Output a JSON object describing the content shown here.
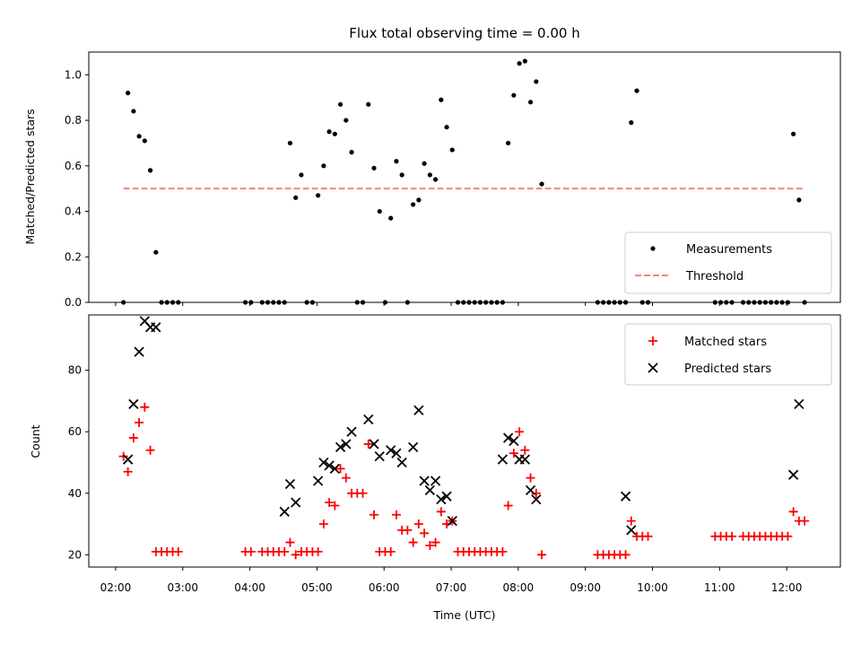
{
  "chart_data": [
    {
      "type": "scatter",
      "title": "Flux total observing time = 0.00 h",
      "ylabel": "Matched/Predicted stars",
      "xlim": [
        "01:36",
        "12:48"
      ],
      "ylim": [
        0,
        1.1
      ],
      "yticks": [
        0.0,
        0.2,
        0.4,
        0.6,
        0.8,
        1.0
      ],
      "ytick_labels": [
        "0.0",
        "0.2",
        "0.4",
        "0.6",
        "0.8",
        "1.0"
      ],
      "legend": {
        "placement": "lower-right",
        "entries": [
          "Measurements",
          "Threshold"
        ]
      },
      "threshold": {
        "name": "Threshold",
        "y": 0.5,
        "x_range": [
          "02:07",
          "12:14"
        ],
        "color": "#ff8080"
      },
      "series": [
        {
          "name": "Measurements",
          "color": "#000000",
          "x": [
            "02:07",
            "02:11",
            "02:16",
            "02:21",
            "02:26",
            "02:31",
            "02:36",
            "02:41",
            "02:46",
            "02:51",
            "02:56",
            "03:56",
            "04:01",
            "04:11",
            "04:16",
            "04:21",
            "04:26",
            "04:31",
            "04:36",
            "04:41",
            "04:46",
            "04:51",
            "04:56",
            "05:01",
            "05:06",
            "05:11",
            "05:16",
            "05:21",
            "05:26",
            "05:31",
            "05:36",
            "05:41",
            "05:46",
            "05:51",
            "05:56",
            "06:01",
            "06:06",
            "06:11",
            "06:16",
            "06:21",
            "06:26",
            "06:31",
            "06:36",
            "06:41",
            "06:46",
            "06:51",
            "06:56",
            "07:01",
            "07:06",
            "07:11",
            "07:16",
            "07:21",
            "07:26",
            "07:31",
            "07:36",
            "07:41",
            "07:46",
            "07:51",
            "07:56",
            "08:01",
            "08:06",
            "08:11",
            "08:16",
            "08:21",
            "09:11",
            "09:16",
            "09:21",
            "09:26",
            "09:31",
            "09:36",
            "09:41",
            "09:46",
            "09:51",
            "09:56",
            "10:56",
            "11:01",
            "11:06",
            "11:11",
            "11:21",
            "11:26",
            "11:31",
            "11:36",
            "11:41",
            "11:46",
            "11:51",
            "11:56",
            "12:01",
            "12:06",
            "12:11",
            "12:16"
          ],
          "y": [
            0,
            0.92,
            0.84,
            0.73,
            0.71,
            0.58,
            0.22,
            0,
            0,
            0,
            0,
            0,
            0,
            0,
            0,
            0,
            0,
            0,
            0.7,
            0.46,
            0.56,
            0,
            0,
            0.47,
            0.6,
            0.75,
            0.74,
            0.87,
            0.8,
            0.66,
            0,
            0,
            0.87,
            0.59,
            0.4,
            0,
            0.37,
            0.62,
            0.56,
            0,
            0.43,
            0.45,
            0.61,
            0.56,
            0.54,
            0.89,
            0.77,
            0.67,
            0,
            0,
            0,
            0,
            0,
            0,
            0,
            0,
            0,
            0.7,
            0.91,
            1.05,
            1.06,
            0.88,
            0.97,
            0.52,
            0,
            0,
            0,
            0,
            0,
            0,
            0.79,
            0.93,
            0,
            0,
            0,
            0,
            0,
            0,
            0,
            0,
            0,
            0,
            0,
            0,
            0,
            0,
            0,
            0.74,
            0.45,
            0
          ]
        }
      ]
    },
    {
      "type": "scatter",
      "xlabel": "Time (UTC)",
      "ylabel": "Count",
      "xlim": [
        "01:36",
        "12:48"
      ],
      "ylim": [
        16,
        98
      ],
      "yticks": [
        20,
        40,
        60,
        80
      ],
      "ytick_labels": [
        "20",
        "40",
        "60",
        "80"
      ],
      "xticks": [
        "02:00",
        "03:00",
        "04:00",
        "05:00",
        "06:00",
        "07:00",
        "08:00",
        "09:00",
        "10:00",
        "11:00",
        "12:00"
      ],
      "legend": {
        "placement": "upper-right",
        "entries": [
          "Matched stars",
          "Predicted stars"
        ]
      },
      "series": [
        {
          "name": "Matched stars",
          "marker": "plus",
          "color": "#ff0000",
          "x": [
            "02:07",
            "02:11",
            "02:16",
            "02:21",
            "02:26",
            "02:31",
            "02:36",
            "02:41",
            "02:46",
            "02:51",
            "02:56",
            "03:56",
            "04:01",
            "04:11",
            "04:16",
            "04:21",
            "04:26",
            "04:31",
            "04:36",
            "04:41",
            "04:46",
            "04:51",
            "04:56",
            "05:01",
            "05:06",
            "05:11",
            "05:16",
            "05:21",
            "05:26",
            "05:31",
            "05:36",
            "05:41",
            "05:46",
            "05:51",
            "05:56",
            "06:01",
            "06:06",
            "06:11",
            "06:16",
            "06:21",
            "06:26",
            "06:31",
            "06:36",
            "06:41",
            "06:46",
            "06:51",
            "06:56",
            "07:01",
            "07:06",
            "07:11",
            "07:16",
            "07:21",
            "07:26",
            "07:31",
            "07:36",
            "07:41",
            "07:46",
            "07:51",
            "07:56",
            "08:01",
            "08:06",
            "08:11",
            "08:16",
            "08:21",
            "09:11",
            "09:16",
            "09:21",
            "09:26",
            "09:31",
            "09:36",
            "09:41",
            "09:46",
            "09:51",
            "09:56",
            "10:56",
            "11:01",
            "11:06",
            "11:11",
            "11:21",
            "11:26",
            "11:31",
            "11:36",
            "11:41",
            "11:46",
            "11:51",
            "11:56",
            "12:01",
            "12:06",
            "12:11",
            "12:16"
          ],
          "y": [
            52,
            47,
            58,
            63,
            68,
            54,
            21,
            21,
            21,
            21,
            21,
            21,
            21,
            21,
            21,
            21,
            21,
            21,
            24,
            20,
            21,
            21,
            21,
            21,
            30,
            37,
            36,
            48,
            45,
            40,
            40,
            40,
            56,
            33,
            21,
            21,
            21,
            33,
            28,
            28,
            24,
            30,
            27,
            23,
            24,
            34,
            30,
            31,
            21,
            21,
            21,
            21,
            21,
            21,
            21,
            21,
            21,
            36,
            53,
            60,
            54,
            45,
            40,
            20,
            20,
            20,
            20,
            20,
            20,
            20,
            31,
            26,
            26,
            26,
            26,
            26,
            26,
            26,
            26,
            26,
            26,
            26,
            26,
            26,
            26,
            26,
            26,
            34,
            31,
            31
          ]
        },
        {
          "name": "Predicted stars",
          "marker": "x",
          "color": "#000000",
          "x": [
            "02:11",
            "02:16",
            "02:21",
            "02:26",
            "02:31",
            "02:36",
            "04:31",
            "04:36",
            "04:41",
            "05:01",
            "05:06",
            "05:11",
            "05:16",
            "05:21",
            "05:26",
            "05:31",
            "05:46",
            "05:51",
            "05:56",
            "06:06",
            "06:11",
            "06:16",
            "06:26",
            "06:31",
            "06:36",
            "06:41",
            "06:46",
            "06:51",
            "06:56",
            "07:01",
            "07:46",
            "07:51",
            "07:56",
            "08:01",
            "08:06",
            "08:11",
            "08:16",
            "09:36",
            "09:41",
            "12:06",
            "12:11"
          ],
          "y": [
            51,
            69,
            86,
            96,
            94,
            94,
            34,
            43,
            37,
            44,
            50,
            49,
            48,
            55,
            56,
            60,
            64,
            56,
            52,
            54,
            53,
            50,
            55,
            67,
            44,
            41,
            44,
            38,
            39,
            31,
            51,
            58,
            57,
            51,
            51,
            41,
            38,
            39,
            28,
            46,
            69
          ]
        }
      ]
    }
  ]
}
